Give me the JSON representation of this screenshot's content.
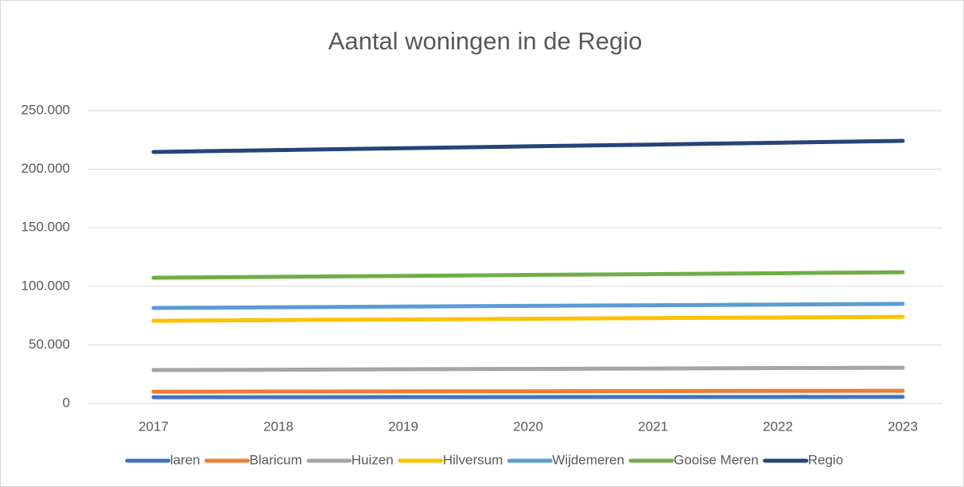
{
  "chart_data": {
    "type": "line",
    "title": "Aantal woningen in de Regio",
    "categories": [
      "2017",
      "2018",
      "2019",
      "2020",
      "2021",
      "2022",
      "2023"
    ],
    "series": [
      {
        "name": "laren",
        "color": "#4472c4",
        "values": [
          5300,
          5350,
          5400,
          5450,
          5500,
          5550,
          5600
        ]
      },
      {
        "name": "Blaricum",
        "color": "#ed7d31",
        "values": [
          10000,
          10150,
          10300,
          10400,
          10550,
          10700,
          10800
        ]
      },
      {
        "name": "Huizen",
        "color": "#a5a5a5",
        "values": [
          28500,
          28800,
          29200,
          29500,
          29800,
          30200,
          30500
        ]
      },
      {
        "name": "Hilversum",
        "color": "#ffc000",
        "values": [
          70600,
          71200,
          71700,
          72300,
          72900,
          73400,
          74000
        ]
      },
      {
        "name": "Wijdemeren",
        "color": "#5b9bd5",
        "values": [
          81500,
          82100,
          82700,
          83300,
          83800,
          84400,
          85000
        ]
      },
      {
        "name": "Gooise Meren",
        "color": "#70ad47",
        "values": [
          107300,
          108100,
          108900,
          109700,
          110400,
          111200,
          112000
        ]
      },
      {
        "name": "Regio",
        "color": "#264478",
        "values": [
          214700,
          216300,
          217900,
          219500,
          221000,
          222600,
          224200
        ]
      }
    ],
    "ylim": [
      0,
      250000
    ],
    "yticks": [
      0,
      {
        "value": 50000,
        "label": "50.000"
      },
      {
        "value": 100000,
        "label": "100.000"
      },
      {
        "value": 150000,
        "label": "150.000"
      },
      {
        "value": 200000,
        "label": "200.000"
      },
      {
        "value": 250000,
        "label": "250.000"
      }
    ],
    "grid": true,
    "legend": "bottom"
  }
}
